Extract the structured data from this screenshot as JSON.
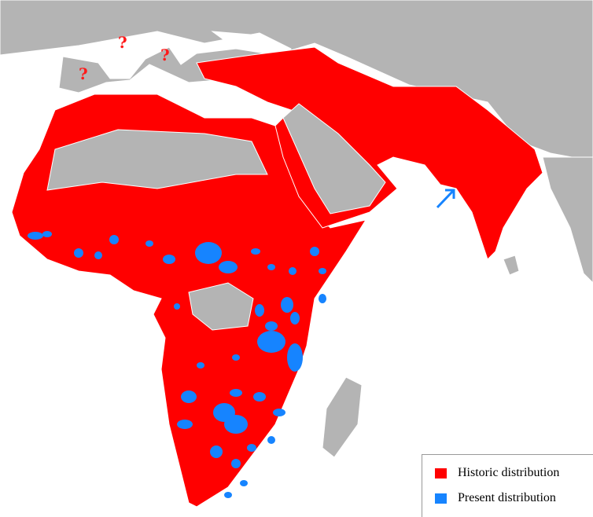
{
  "map": {
    "colors": {
      "land": "#b4b4b4",
      "sea": "#ffffff",
      "historic": "#ff0000",
      "present": "#1684ff",
      "borders": "#ffffff"
    },
    "uncertain_markers": [
      "?",
      "?",
      "?"
    ],
    "arrow": "arrow-pointing-to-present-range-icon"
  },
  "legend": {
    "items": [
      {
        "label": "Historic distribution",
        "color": "#ff0000"
      },
      {
        "label": "Present distribution",
        "color": "#1684ff"
      }
    ]
  }
}
